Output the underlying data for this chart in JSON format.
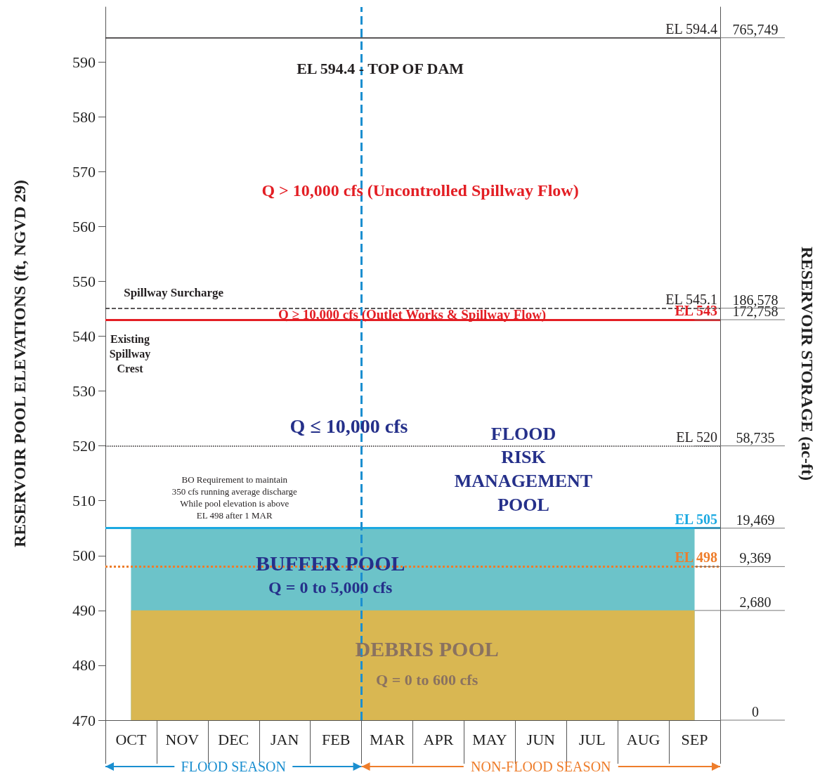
{
  "chart_data": {
    "type": "area",
    "ylabel": "RESERVOIR POOL ELEVATIONS (ft, NGVD 29)",
    "y2label": "RESERVOIR STORAGE (ac-ft)",
    "categories": [
      "OCT",
      "NOV",
      "DEC",
      "JAN",
      "FEB",
      "MAR",
      "APR",
      "MAY",
      "JUN",
      "JUL",
      "AUG",
      "SEP"
    ],
    "series": [
      {
        "name": "BUFFER POOL",
        "color": "#6cc3c9",
        "values": [
          505,
          505,
          505,
          505,
          505,
          505,
          505,
          505,
          505,
          505,
          505,
          505
        ]
      },
      {
        "name": "DEBRIS POOL",
        "color": "#d9b752",
        "values": [
          490,
          490,
          490,
          490,
          490,
          490,
          490,
          490,
          490,
          490,
          490,
          490
        ]
      }
    ],
    "ylim": [
      470,
      600
    ],
    "yticks": [
      470,
      480,
      490,
      500,
      510,
      520,
      530,
      540,
      550,
      560,
      570,
      580,
      590
    ],
    "legend": false,
    "ref_lines": [
      {
        "axis": "y",
        "value": 594.4,
        "label": "EL 594.4",
        "color": "#231f20",
        "line_style": "solid"
      },
      {
        "axis": "y",
        "value": 545.1,
        "label": "EL 545.1",
        "color": "#231f20",
        "line_style": "dashed"
      },
      {
        "axis": "y",
        "value": 543,
        "label": "EL 543",
        "color": "#e31e24",
        "line_style": "solid"
      },
      {
        "axis": "y",
        "value": 520,
        "label": "EL 520",
        "color": "#231f20",
        "line_style": "dotted"
      },
      {
        "axis": "y",
        "value": 505,
        "label": "EL 505",
        "color": "#1ba9e1",
        "line_style": "solid"
      },
      {
        "axis": "y",
        "value": 498,
        "label": "EL 498",
        "color": "#ee7d2b",
        "line_style": "dotted"
      },
      {
        "axis": "x",
        "value": "MAR",
        "color": "#1b8fd0",
        "line_style": "dashed"
      }
    ],
    "annotations": [
      "EL 594.4 - TOP OF DAM",
      "Q > 10,000 cfs (Uncontrolled Spillway Flow)",
      "Spillway Surcharge",
      "Q ≥ 10,000 cfs (Outlet Works & Spillway Flow)",
      "Existing\nSpillway\nCrest",
      "Q ≤ 10,000 cfs",
      "FLOOD\nRISK\nMANAGEMENT\nPOOL",
      "BO Requirement to maintain\n350 cfs running average discharge\nWhile pool elevation is above\nEL 498 after 1 MAR",
      "Q = 0 to 5,000 cfs",
      "Q = 0 to 600 cfs",
      {
        "text": "765,749",
        "x": "SEP",
        "y": 594.4
      },
      {
        "text": "186,578",
        "x": "SEP",
        "y": 545.1
      },
      {
        "text": "172,758",
        "x": "SEP",
        "y": 543
      },
      {
        "text": "58,735",
        "x": "SEP",
        "y": 520
      },
      {
        "text": "19,469",
        "x": "SEP",
        "y": 505
      },
      {
        "text": "9,369",
        "x": "SEP",
        "y": 498
      },
      {
        "text": "2,680",
        "x": "SEP",
        "y": 490
      },
      "0",
      "FLOOD SEASON",
      "NON-FLOOD SEASON"
    ]
  }
}
